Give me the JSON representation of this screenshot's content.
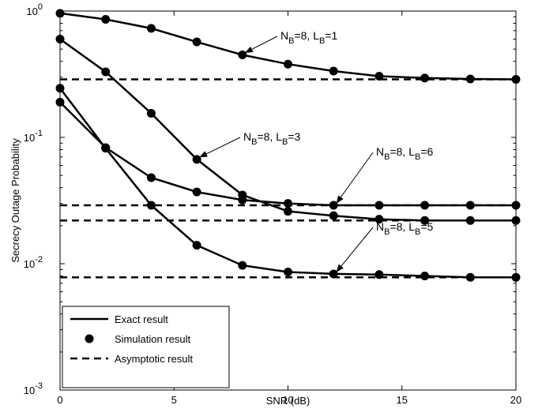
{
  "chart_data": {
    "type": "line",
    "xlabel": "SNR (dB)",
    "ylabel": "Secrecy Outage Probability",
    "xlim": [
      0,
      20
    ],
    "ylim": [
      0.001,
      1
    ],
    "yscale": "log",
    "grid": false,
    "x_ticks": [
      0,
      5,
      10,
      15,
      20
    ],
    "y_ticks": [
      {
        "value": 1,
        "base": "10",
        "exp": "0"
      },
      {
        "value": 0.1,
        "base": "10",
        "exp": "-1"
      },
      {
        "value": 0.01,
        "base": "10",
        "exp": "-2"
      },
      {
        "value": 0.001,
        "base": "10",
        "exp": "-3"
      }
    ],
    "legend": {
      "position": "bottom-left",
      "entries": [
        {
          "label": "Exact result",
          "style": "solid"
        },
        {
          "label": "Simulation result",
          "style": "marker"
        },
        {
          "label": "Asymptotic result",
          "style": "dashed"
        }
      ]
    },
    "x": [
      0,
      2,
      4,
      6,
      8,
      10,
      12,
      14,
      16,
      18,
      20
    ],
    "series": [
      {
        "label_parts": [
          "N",
          "B",
          "=8, L",
          "B",
          "=1"
        ],
        "exact": [
          0.96,
          0.86,
          0.73,
          0.57,
          0.45,
          0.38,
          0.335,
          0.305,
          0.295,
          0.29,
          0.288
        ],
        "simulation": [
          0.96,
          0.86,
          0.73,
          0.57,
          0.45,
          0.38,
          0.335,
          0.305,
          0.295,
          0.29,
          0.288
        ],
        "asymptotic": 0.288
      },
      {
        "label_parts": [
          "N",
          "B",
          "=8, L",
          "B",
          "=3"
        ],
        "exact": [
          0.6,
          0.33,
          0.155,
          0.067,
          0.035,
          0.026,
          0.024,
          0.0225,
          0.022,
          0.022,
          0.022
        ],
        "simulation": [
          0.6,
          0.33,
          0.155,
          0.067,
          0.035,
          0.026,
          0.024,
          0.0225,
          0.022,
          0.022,
          0.022
        ],
        "asymptotic": 0.022
      },
      {
        "label_parts": [
          "N",
          "B",
          "=8, L",
          "B",
          "=6"
        ],
        "exact": [
          0.19,
          0.083,
          0.048,
          0.037,
          0.032,
          0.03,
          0.029,
          0.029,
          0.029,
          0.029,
          0.029
        ],
        "simulation": [
          0.19,
          0.083,
          0.048,
          0.037,
          0.032,
          0.03,
          0.029,
          0.029,
          0.029,
          0.029,
          0.029
        ],
        "asymptotic": 0.029
      },
      {
        "label_parts": [
          "N",
          "B",
          "=8, L",
          "B",
          "=5"
        ],
        "exact": [
          0.245,
          0.082,
          0.029,
          0.014,
          0.0097,
          0.0086,
          0.0083,
          0.0082,
          0.008,
          0.0078,
          0.0078
        ],
        "simulation": [
          0.245,
          0.082,
          0.029,
          0.014,
          0.0097,
          0.0086,
          0.0083,
          0.0082,
          0.008,
          0.0078,
          0.0078
        ],
        "asymptotic": 0.0078
      }
    ],
    "annotations": [
      {
        "series_index": 0,
        "arrow_to": [
          8,
          0.45
        ]
      },
      {
        "series_index": 1,
        "arrow_to": [
          6,
          0.067
        ]
      },
      {
        "series_index": 2,
        "arrow_to": [
          12,
          0.029
        ]
      },
      {
        "series_index": 3,
        "arrow_to": [
          12,
          0.0083
        ]
      }
    ]
  }
}
